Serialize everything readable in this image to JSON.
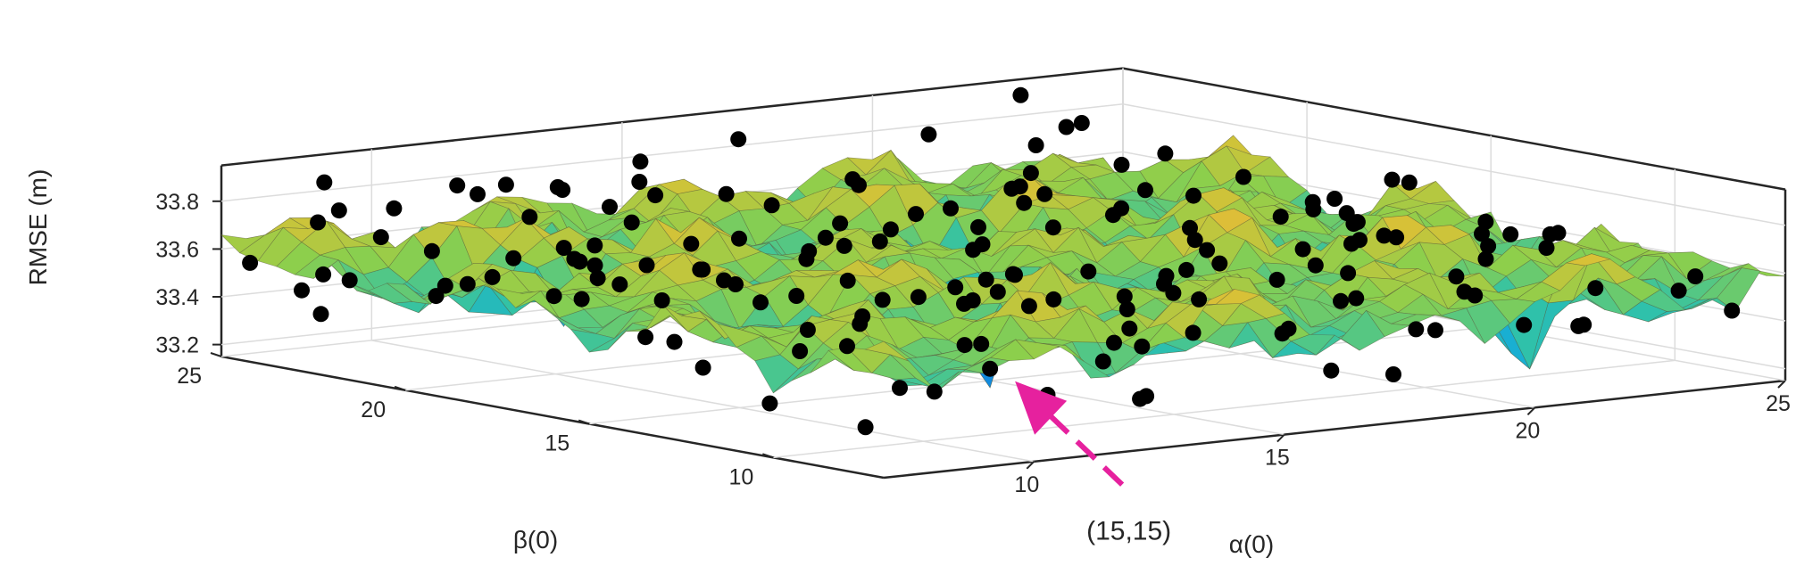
{
  "chart_data": {
    "type": "surface3d",
    "title": "",
    "xlabel": "α(0)",
    "ylabel": "β(0)",
    "zlabel": "RMSE (m)",
    "x_ticks": [
      10,
      15,
      20,
      25
    ],
    "y_ticks": [
      10,
      15,
      20,
      25
    ],
    "z_ticks": [
      33.2,
      33.4,
      33.6,
      33.8
    ],
    "x_tick_labels": [
      "10",
      "15",
      "20",
      "25"
    ],
    "y_tick_labels": [
      "10",
      "15",
      "20",
      "25"
    ],
    "z_tick_labels": [
      "33.2",
      "33.4",
      "33.6",
      "33.8"
    ],
    "xlim": [
      7,
      25
    ],
    "ylim": [
      7,
      25
    ],
    "zlim": [
      33.15,
      33.95
    ],
    "grid": true,
    "colormap": [
      "#0f5cdd",
      "#12a9e0",
      "#30c2a8",
      "#8ccf4c",
      "#d6c237",
      "#f2b13a"
    ],
    "surface": {
      "x_range": [
        7,
        25
      ],
      "y_range": [
        7,
        25
      ],
      "z_min": 33.22,
      "z_max": 33.85,
      "description_points_per_axis": 37
    },
    "markers": {
      "color": "#000000",
      "count": 170
    },
    "annotation": {
      "text": "(15,15)",
      "x": 15,
      "y": 15,
      "z": 33.2,
      "color": "#e6219e"
    }
  },
  "labels": {
    "xlabel": "α(0)",
    "ylabel": "β(0)",
    "zlabel": "RMSE (m)",
    "annotation": "(15,15)"
  }
}
